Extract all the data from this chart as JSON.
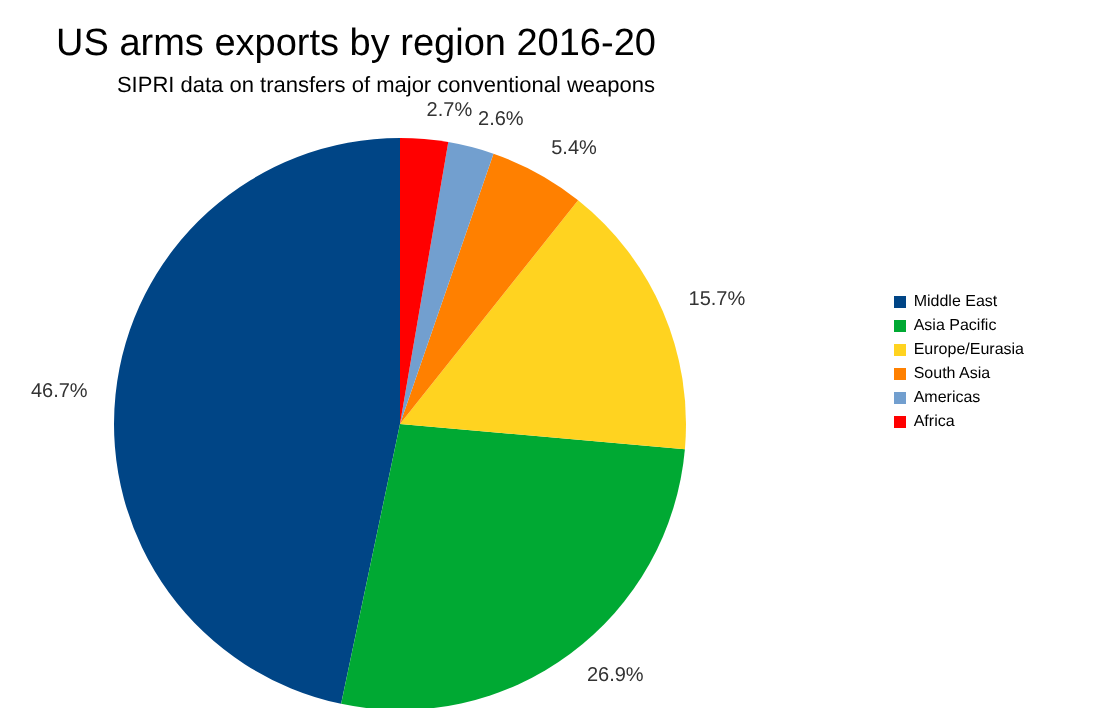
{
  "chart_data": {
    "type": "pie",
    "title": "US arms exports by region 2016-20",
    "subtitle": "SIPRI data on transfers of major conventional weapons",
    "categories": [
      "Middle East",
      "Asia Pacific",
      "Europe/Eurasia",
      "South Asia",
      "Americas",
      "Africa"
    ],
    "values": [
      46.7,
      26.9,
      15.7,
      5.4,
      2.6,
      2.7
    ],
    "colors": [
      "#004586",
      "#00a933",
      "#ffd320",
      "#ff8000",
      "#729fcf",
      "#ff0000"
    ],
    "value_labels": [
      "46.7%",
      "26.9%",
      "15.7%",
      "5.4%",
      "2.6%",
      "2.7%"
    ],
    "legend": "right"
  }
}
